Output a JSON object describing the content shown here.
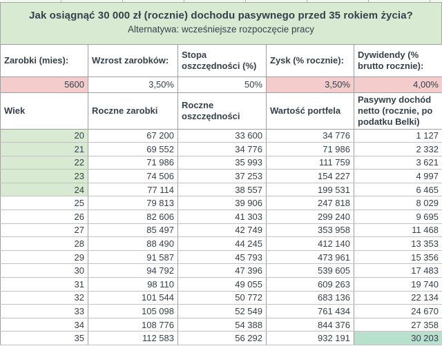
{
  "title": {
    "heading": "Jak osiągnąć 30 000 zł (rocznie) dochodu pasywnego przed 35 rokiem życia?",
    "subtitle": "Alternatywa: wcześniejsze rozpoczęcie pracy"
  },
  "parameters": {
    "columns": [
      {
        "label": "Zarobki (mies):",
        "value": "5600",
        "highlight": true
      },
      {
        "label": "Wzrost zarobków:",
        "value": "3,50%",
        "highlight": false
      },
      {
        "label": "Stopa oszczędności (%)",
        "value": "50%",
        "highlight": false
      },
      {
        "label": "Zysk (% rocznie):",
        "value": "3,50%",
        "highlight": true
      },
      {
        "label": "Dywidendy (% brutto rocznie):",
        "value": "4,00%",
        "highlight": true
      }
    ]
  },
  "table": {
    "headers": [
      "Wiek",
      "Roczne zarobki",
      "Roczne oszczędności",
      "Wartość portfela",
      "Pasywny dochód netto (rocznie, po podatku Belki)"
    ],
    "rows": [
      {
        "wiek": "20",
        "roczne_zarobki": "67 200",
        "roczne_oszczednosci": "33 600",
        "wartosc_portfela": "34 776",
        "pasywny_dochod": "1 127",
        "age_highlight": true,
        "goal_highlight": false
      },
      {
        "wiek": "21",
        "roczne_zarobki": "69 552",
        "roczne_oszczednosci": "34 776",
        "wartosc_portfela": "71 986",
        "pasywny_dochod": "2 332",
        "age_highlight": true,
        "goal_highlight": false
      },
      {
        "wiek": "22",
        "roczne_zarobki": "71 986",
        "roczne_oszczednosci": "35 993",
        "wartosc_portfela": "111 759",
        "pasywny_dochod": "3 621",
        "age_highlight": true,
        "goal_highlight": false
      },
      {
        "wiek": "23",
        "roczne_zarobki": "74 506",
        "roczne_oszczednosci": "37 253",
        "wartosc_portfela": "154 227",
        "pasywny_dochod": "4 997",
        "age_highlight": true,
        "goal_highlight": false
      },
      {
        "wiek": "24",
        "roczne_zarobki": "77 114",
        "roczne_oszczednosci": "38 557",
        "wartosc_portfela": "199 531",
        "pasywny_dochod": "6 465",
        "age_highlight": true,
        "goal_highlight": false
      },
      {
        "wiek": "25",
        "roczne_zarobki": "79 813",
        "roczne_oszczednosci": "39 906",
        "wartosc_portfela": "247 818",
        "pasywny_dochod": "8 029",
        "age_highlight": false,
        "goal_highlight": false
      },
      {
        "wiek": "26",
        "roczne_zarobki": "82 606",
        "roczne_oszczednosci": "41 303",
        "wartosc_portfela": "299 240",
        "pasywny_dochod": "9 695",
        "age_highlight": false,
        "goal_highlight": false
      },
      {
        "wiek": "27",
        "roczne_zarobki": "85 497",
        "roczne_oszczednosci": "42 749",
        "wartosc_portfela": "353 958",
        "pasywny_dochod": "11 468",
        "age_highlight": false,
        "goal_highlight": false
      },
      {
        "wiek": "28",
        "roczne_zarobki": "88 490",
        "roczne_oszczednosci": "44 245",
        "wartosc_portfela": "412 140",
        "pasywny_dochod": "13 353",
        "age_highlight": false,
        "goal_highlight": false
      },
      {
        "wiek": "29",
        "roczne_zarobki": "91 587",
        "roczne_oszczednosci": "45 793",
        "wartosc_portfela": "473 961",
        "pasywny_dochod": "15 356",
        "age_highlight": false,
        "goal_highlight": false
      },
      {
        "wiek": "30",
        "roczne_zarobki": "94 792",
        "roczne_oszczednosci": "47 396",
        "wartosc_portfela": "539 605",
        "pasywny_dochod": "17 483",
        "age_highlight": false,
        "goal_highlight": false
      },
      {
        "wiek": "31",
        "roczne_zarobki": "98 110",
        "roczne_oszczednosci": "49 055",
        "wartosc_portfela": "609 263",
        "pasywny_dochod": "19 740",
        "age_highlight": false,
        "goal_highlight": false
      },
      {
        "wiek": "32",
        "roczne_zarobki": "101 544",
        "roczne_oszczednosci": "50 772",
        "wartosc_portfela": "683 136",
        "pasywny_dochod": "22 134",
        "age_highlight": false,
        "goal_highlight": false
      },
      {
        "wiek": "33",
        "roczne_zarobki": "105 098",
        "roczne_oszczednosci": "52 549",
        "wartosc_portfela": "761 434",
        "pasywny_dochod": "24 670",
        "age_highlight": false,
        "goal_highlight": false
      },
      {
        "wiek": "34",
        "roczne_zarobki": "108 776",
        "roczne_oszczednosci": "54 388",
        "wartosc_portfela": "844 376",
        "pasywny_dochod": "27 358",
        "age_highlight": false,
        "goal_highlight": false
      },
      {
        "wiek": "35",
        "roczne_zarobki": "112 583",
        "roczne_oszczednosci": "56 292",
        "wartosc_portfela": "932 191",
        "pasywny_dochod": "30 203",
        "age_highlight": false,
        "goal_highlight": true
      }
    ]
  },
  "colors": {
    "title_bg": "#d9ead3",
    "pink": "#f4cccc",
    "green_light": "#d9ead3",
    "green_strong": "#b7e1cd",
    "text_color": "#36404a"
  }
}
